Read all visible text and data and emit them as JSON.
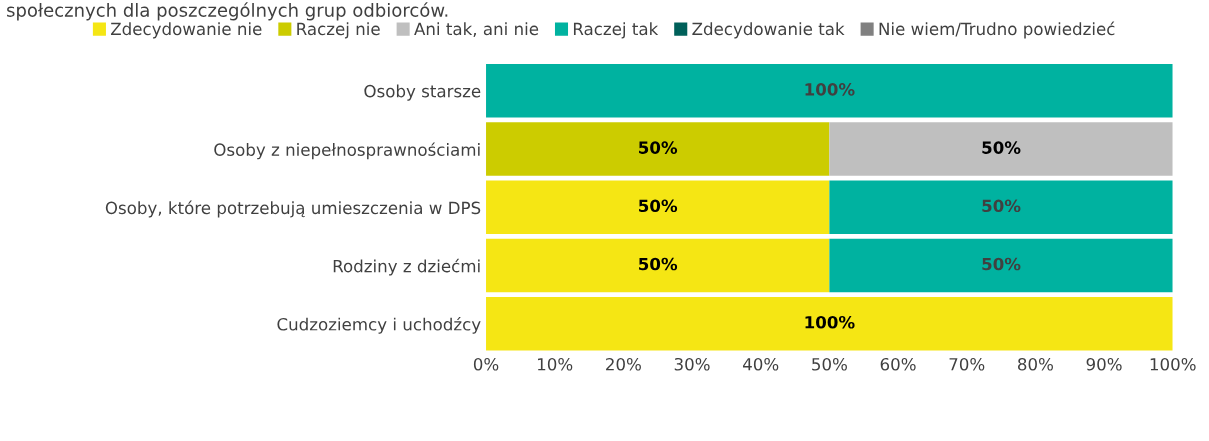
{
  "chart_data": {
    "type": "bar",
    "orientation": "horizontal",
    "stacked": true,
    "title": "społecznych dla poszczególnych grup odbiorców.",
    "categories": [
      "Osoby starsze",
      "Osoby z niepełnosprawnościami",
      "Osoby, które potrzebują umieszczenia w DPS",
      "Rodziny z dziećmi",
      "Cudzoziemcy i uchodźcy"
    ],
    "series": [
      {
        "name": "Zdecydowanie nie",
        "color": "#f5e614",
        "values": [
          0,
          0,
          50,
          50,
          100
        ],
        "value_labels": [
          null,
          null,
          "50%",
          "50%",
          "100%"
        ]
      },
      {
        "name": "Raczej nie",
        "color": "#cccc00",
        "values": [
          0,
          50,
          0,
          0,
          0
        ],
        "value_labels": [
          null,
          "50%",
          null,
          null,
          null
        ]
      },
      {
        "name": "Ani tak, ani nie",
        "color": "#bfbfbf",
        "values": [
          0,
          50,
          0,
          0,
          0
        ],
        "value_labels": [
          null,
          "50%",
          null,
          null,
          null
        ]
      },
      {
        "name": "Raczej tak",
        "color": "#00b2a0",
        "values": [
          100,
          0,
          50,
          50,
          0
        ],
        "value_labels": [
          "100%",
          null,
          "50%",
          "50%",
          null
        ]
      },
      {
        "name": "Zdecydowanie tak",
        "color": "#00605a",
        "values": [
          0,
          0,
          0,
          0,
          0
        ]
      },
      {
        "name": "Nie wiem/Trudno powiedzieć",
        "color": "#808080",
        "values": [
          0,
          0,
          0,
          0,
          0
        ]
      }
    ],
    "xlim": [
      0,
      100
    ],
    "xticks": [
      {
        "value": 0,
        "label": "0%"
      },
      {
        "value": 10,
        "label": "10%"
      },
      {
        "value": 20,
        "label": "20%"
      },
      {
        "value": 30,
        "label": "30%"
      },
      {
        "value": 40,
        "label": "40%"
      },
      {
        "value": 50,
        "label": "50%"
      },
      {
        "value": 60,
        "label": "60%"
      },
      {
        "value": 70,
        "label": "70%"
      },
      {
        "value": 80,
        "label": "80%"
      },
      {
        "value": 90,
        "label": "90%"
      },
      {
        "value": 100,
        "label": "100%"
      }
    ],
    "grid": false,
    "legend": "top"
  }
}
